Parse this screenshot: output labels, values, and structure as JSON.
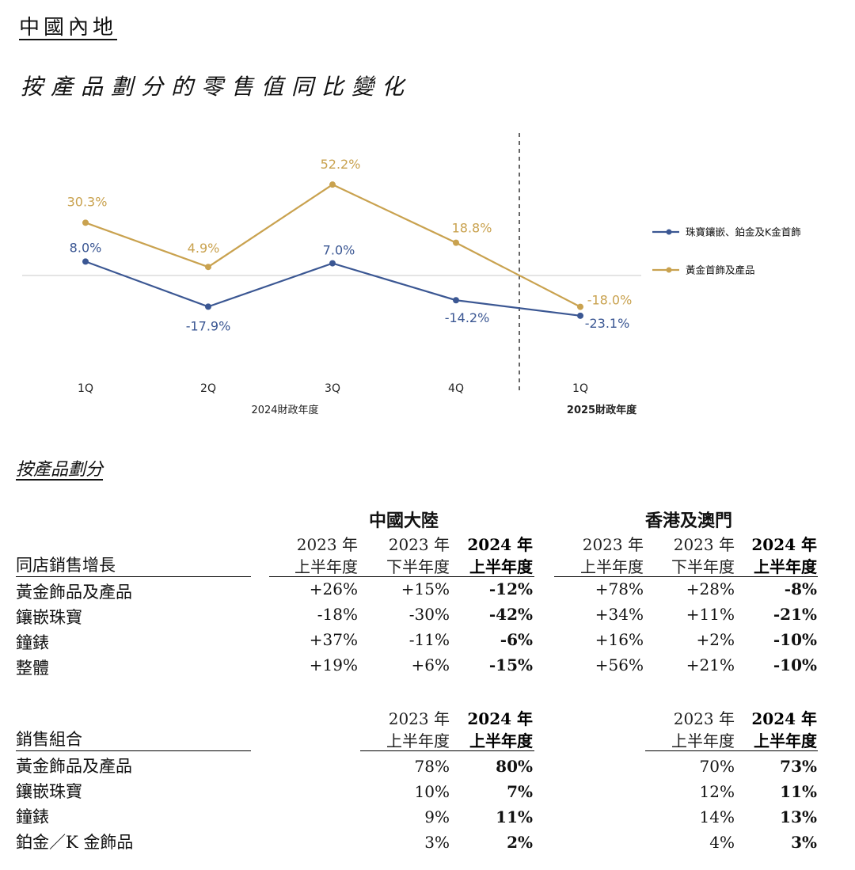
{
  "header": {
    "region": "中國內地",
    "chart_title": "按產品劃分的零售值同比變化"
  },
  "chart_data": {
    "type": "line",
    "title": "按產品劃分的零售值同比變化",
    "categories": [
      "1Q",
      "2Q",
      "3Q",
      "4Q",
      "1Q"
    ],
    "period_labels": [
      "2024財政年度",
      "2025財政年度"
    ],
    "series": [
      {
        "name": "珠寶鑲嵌、鉑金及K金首飾",
        "color": "#3b5793",
        "values": [
          8.0,
          -17.9,
          7.0,
          -14.2,
          -23.1
        ],
        "labels": [
          "8.0%",
          "-17.9%",
          "7.0%",
          "-14.2%",
          "-23.1%"
        ]
      },
      {
        "name": "黃金首飾及產品",
        "color": "#c9a24f",
        "values": [
          30.3,
          4.9,
          52.2,
          18.8,
          -18.0
        ],
        "labels": [
          "30.3%",
          "4.9%",
          "52.2%",
          "18.8%",
          "-18.0%"
        ]
      }
    ],
    "ylim": [
      -40,
      70
    ],
    "zero_line": true,
    "divider_after_category": 4,
    "legend_position": "right"
  },
  "section_title": "按產品劃分",
  "table1": {
    "groups": [
      "中國大陸",
      "香港及澳門"
    ],
    "row_header": "同店銷售增長",
    "col_headers": [
      {
        "line1": "2023 年",
        "line2": "上半年度"
      },
      {
        "line1": "2023 年",
        "line2": "下半年度"
      },
      {
        "line1": "2024 年",
        "line2": "上半年度"
      }
    ],
    "rows": [
      {
        "label": "黃金飾品及產品",
        "mainland": [
          "+26%",
          "+15%",
          "-12%"
        ],
        "hkmo": [
          "+78%",
          "+28%",
          "-8%"
        ]
      },
      {
        "label": "鑲嵌珠寶",
        "mainland": [
          "-18%",
          "-30%",
          "-42%"
        ],
        "hkmo": [
          "+34%",
          "+11%",
          "-21%"
        ]
      },
      {
        "label": "鐘錶",
        "mainland": [
          "+37%",
          "-11%",
          "-6%"
        ],
        "hkmo": [
          "+16%",
          "+2%",
          "-10%"
        ]
      },
      {
        "label": "整體",
        "mainland": [
          "+19%",
          "+6%",
          "-15%"
        ],
        "hkmo": [
          "+56%",
          "+21%",
          "-10%"
        ]
      }
    ]
  },
  "table2": {
    "row_header": "銷售組合",
    "col_headers": [
      {
        "line1": "2023 年",
        "line2": "上半年度"
      },
      {
        "line1": "2024 年",
        "line2": "上半年度"
      }
    ],
    "rows": [
      {
        "label": "黃金飾品及產品",
        "mainland": [
          "78%",
          "80%"
        ],
        "hkmo": [
          "70%",
          "73%"
        ]
      },
      {
        "label": "鑲嵌珠寶",
        "mainland": [
          "10%",
          "7%"
        ],
        "hkmo": [
          "12%",
          "11%"
        ]
      },
      {
        "label": "鐘錶",
        "mainland": [
          "9%",
          "11%"
        ],
        "hkmo": [
          "14%",
          "13%"
        ]
      },
      {
        "label": "鉑金／K 金飾品",
        "mainland": [
          "3%",
          "2%"
        ],
        "hkmo": [
          "4%",
          "3%"
        ]
      }
    ]
  }
}
